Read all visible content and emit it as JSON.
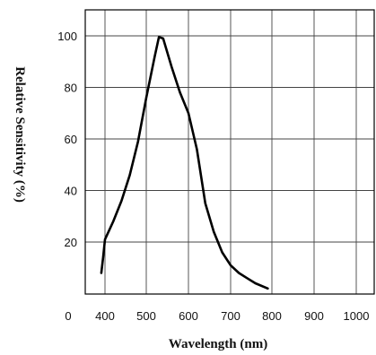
{
  "chart_data": {
    "type": "line",
    "xlabel": "Wavelength (nm)",
    "ylabel": "Relative Sensitivity (%)",
    "xlim": [
      0,
      1000
    ],
    "ylim": [
      0,
      110
    ],
    "x_ticks": [
      0,
      400,
      500,
      600,
      700,
      800,
      900,
      1000
    ],
    "y_ticks": [
      20,
      40,
      60,
      80,
      100
    ],
    "grid": true,
    "series": [
      {
        "color": "#000000",
        "x": [
          360,
          380,
          400,
          420,
          440,
          460,
          480,
          500,
          520,
          530,
          540,
          560,
          580,
          600,
          620,
          640,
          660,
          680,
          700,
          720,
          740,
          760,
          790
        ],
        "y": [
          8,
          14,
          21,
          28,
          36,
          46,
          59,
          76,
          92,
          99.5,
          99,
          88,
          78,
          70,
          56,
          35,
          24,
          16,
          11,
          8,
          6,
          4,
          2
        ]
      }
    ]
  }
}
